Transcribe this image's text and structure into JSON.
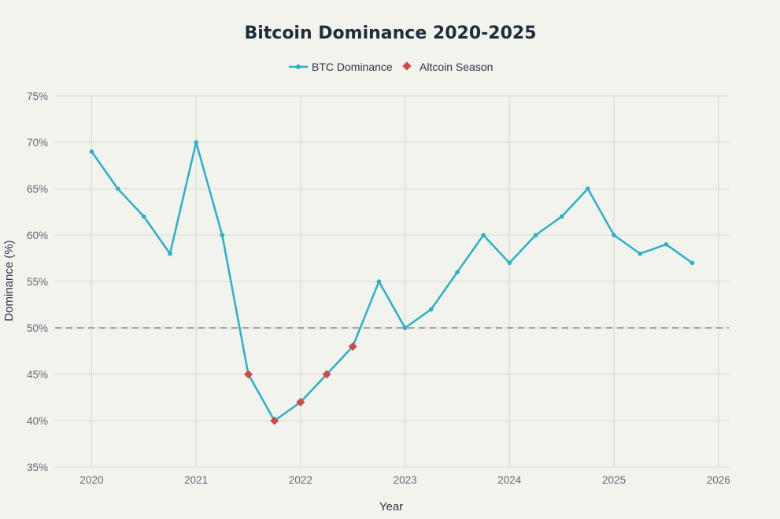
{
  "chart_data": {
    "type": "line",
    "title": "Bitcoin Dominance 2020-2025",
    "xlabel": "Year",
    "ylabel": "Dominance (%)",
    "xlim": [
      2019.65,
      2026.1
    ],
    "ylim": [
      35,
      75
    ],
    "x_ticks": [
      2020,
      2021,
      2022,
      2023,
      2024,
      2025,
      2026
    ],
    "x_tick_labels": [
      "2020",
      "2021",
      "2022",
      "2023",
      "2024",
      "2025",
      "2026"
    ],
    "y_ticks": [
      35,
      40,
      45,
      50,
      55,
      60,
      65,
      70,
      75
    ],
    "y_tick_labels": [
      "35%",
      "40%",
      "45%",
      "50%",
      "55%",
      "60%",
      "65%",
      "70%",
      "75%"
    ],
    "grid": true,
    "legend_position": "top-center",
    "reference_line": {
      "y": 50,
      "style": "dashed",
      "color": "#8a8a8a"
    },
    "series": [
      {
        "name": "BTC Dominance",
        "color": "#2ab0c8",
        "marker": "circle",
        "x": [
          2020,
          2020.25,
          2020.5,
          2020.75,
          2021,
          2021.25,
          2021.5,
          2021.75,
          2022,
          2022.25,
          2022.5,
          2022.75,
          2023,
          2023.25,
          2023.5,
          2023.75,
          2024,
          2024.25,
          2024.5,
          2024.75,
          2025,
          2025.25,
          2025.5,
          2025.75
        ],
        "values": [
          69,
          65,
          62,
          58,
          70,
          60,
          45,
          40,
          42,
          45,
          48,
          55,
          50,
          52,
          56,
          60,
          57,
          60,
          62,
          65,
          60,
          58,
          59,
          57
        ]
      },
      {
        "name": "Altcoin Season",
        "color": "#d04a48",
        "marker": "diamond",
        "x": [
          2021.5,
          2021.75,
          2022,
          2022.25,
          2022.5
        ],
        "values": [
          45,
          40,
          42,
          45,
          48
        ]
      }
    ]
  }
}
